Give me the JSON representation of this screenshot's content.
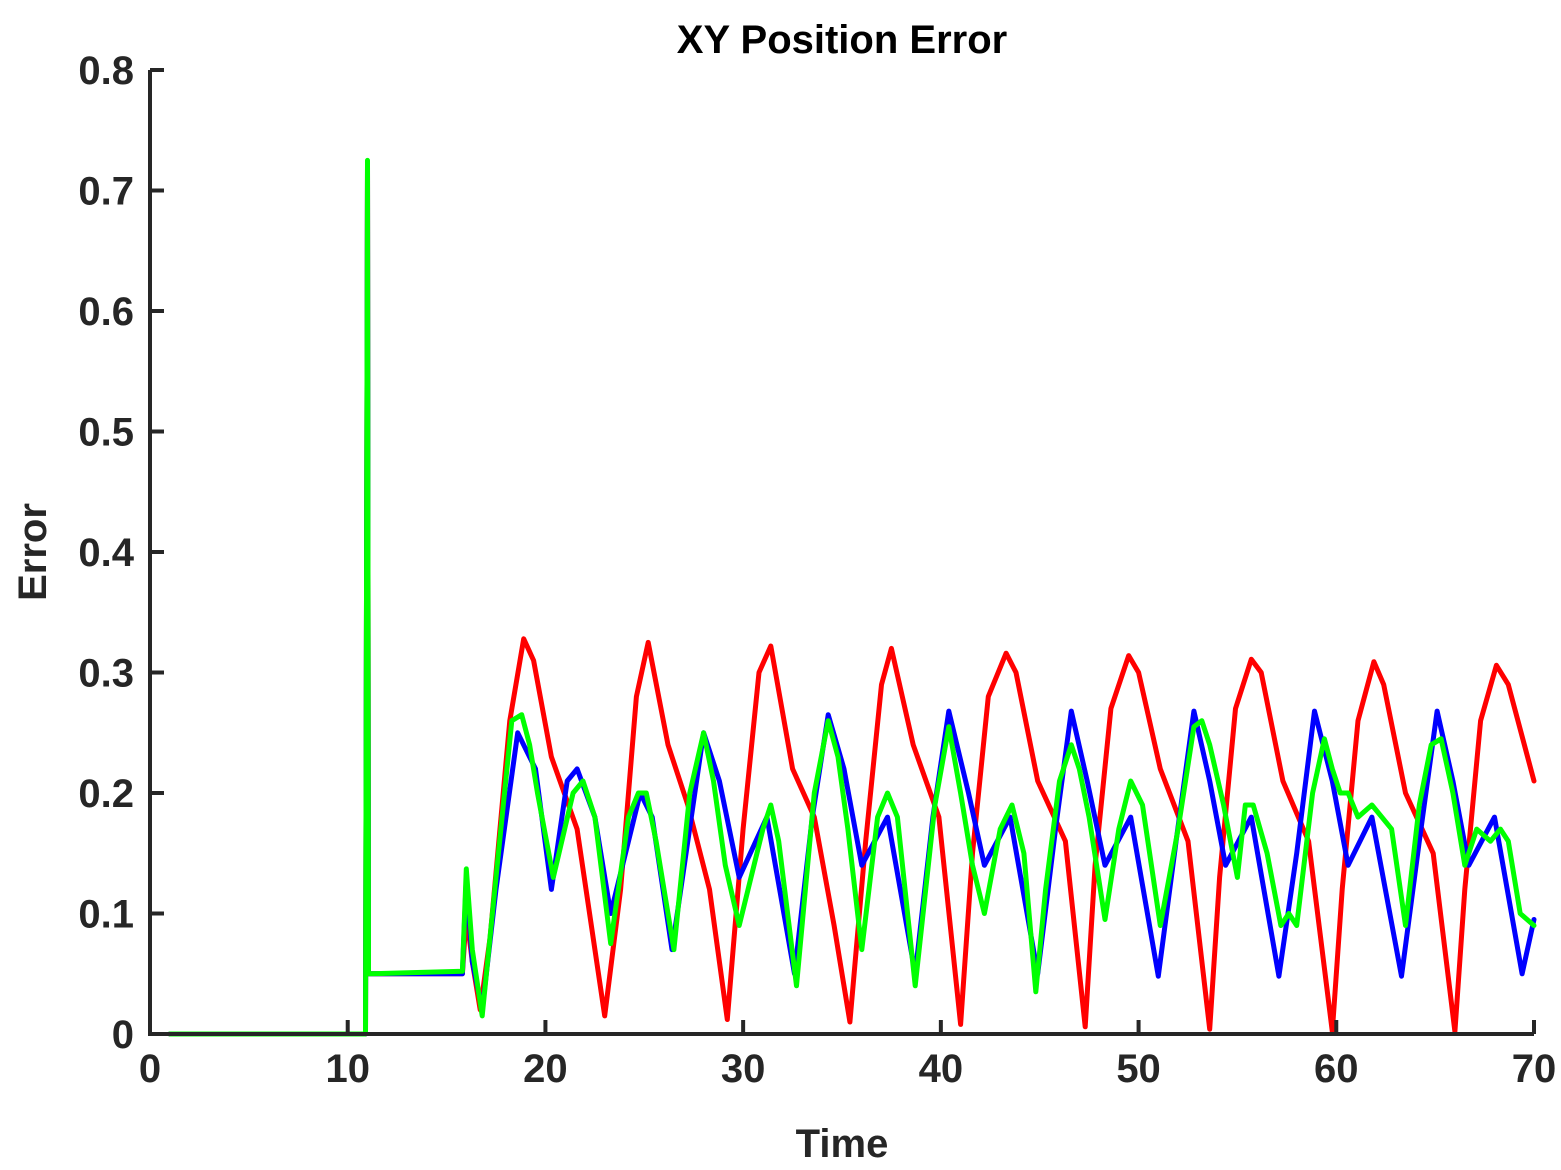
{
  "chart_data": {
    "type": "line",
    "title": "XY Position Error",
    "xlabel": "Time",
    "ylabel": "Error",
    "xlim": [
      0,
      70
    ],
    "ylim": [
      0,
      0.8
    ],
    "xticks": [
      0,
      10,
      20,
      30,
      40,
      50,
      60,
      70
    ],
    "xtick_labels": [
      "0",
      "10",
      "20",
      "30",
      "40",
      "50",
      "60",
      "70"
    ],
    "yticks": [
      0,
      0.1,
      0.2,
      0.3,
      0.4,
      0.5,
      0.6,
      0.7,
      0.8
    ],
    "ytick_labels": [
      "0",
      "0.1",
      "0.2",
      "0.3",
      "0.4",
      "0.5",
      "0.6",
      "0.7",
      "0.8"
    ],
    "grid": false,
    "legend": "none",
    "series": [
      {
        "color": "#ff0000",
        "x": [
          1,
          10.9,
          11,
          11.05,
          11.1,
          15.8,
          16,
          16.3,
          16.7,
          17.2,
          18.2,
          18.9,
          19.4,
          20.3,
          21.6,
          23,
          23.8,
          24.6,
          25.2,
          26.2,
          27.2,
          28.3,
          29.2,
          30,
          30.8,
          31.4,
          32.5,
          33.6,
          34.6,
          35.4,
          36.2,
          37,
          37.5,
          38.6,
          39.9,
          41,
          41.6,
          42.4,
          43.3,
          43.8,
          44.9,
          46.3,
          47.3,
          47.8,
          48.6,
          49.5,
          50,
          51.1,
          52.5,
          53.6,
          54.1,
          54.9,
          55.7,
          56.2,
          57.3,
          58.6,
          59.8,
          60.3,
          61.1,
          61.9,
          62.4,
          63.5,
          64.9,
          66,
          66.5,
          67.3,
          68.1,
          68.7,
          70
        ],
        "values": [
          0,
          0,
          0.72,
          0.05,
          0.05,
          0.05,
          0.1,
          0.06,
          0.02,
          0.08,
          0.26,
          0.328,
          0.31,
          0.23,
          0.17,
          0.015,
          0.12,
          0.28,
          0.325,
          0.24,
          0.19,
          0.12,
          0.012,
          0.17,
          0.3,
          0.322,
          0.22,
          0.18,
          0.09,
          0.01,
          0.16,
          0.29,
          0.32,
          0.24,
          0.18,
          0.008,
          0.15,
          0.28,
          0.316,
          0.3,
          0.21,
          0.16,
          0.006,
          0.14,
          0.27,
          0.314,
          0.3,
          0.22,
          0.16,
          0.004,
          0.13,
          0.27,
          0.311,
          0.3,
          0.21,
          0.16,
          0.002,
          0.12,
          0.26,
          0.309,
          0.29,
          0.2,
          0.15,
          0.002,
          0.12,
          0.26,
          0.306,
          0.29,
          0.21
        ]
      },
      {
        "color": "#0000ff",
        "x": [
          1,
          10.9,
          11,
          11.05,
          11.1,
          15.8,
          16,
          16.3,
          16.8,
          17.5,
          18.6,
          19.5,
          20.3,
          21.1,
          21.6,
          22.5,
          23.3,
          24.8,
          25.4,
          26.4,
          28,
          28.8,
          29.8,
          31.2,
          32.6,
          33.5,
          34.3,
          35.1,
          36,
          37.3,
          38.7,
          39.6,
          40.4,
          41.4,
          42.2,
          43.5,
          44.9,
          45.8,
          46.6,
          47.4,
          48.3,
          49.6,
          51,
          51.9,
          52.8,
          53.6,
          54.4,
          55.7,
          57.1,
          58,
          58.9,
          59.8,
          60.6,
          61.8,
          63.3,
          64.2,
          65.1,
          65.9,
          66.7,
          68,
          69.4,
          70
        ],
        "values": [
          0,
          0,
          0.72,
          0.05,
          0.05,
          0.05,
          0.13,
          0.06,
          0.02,
          0.12,
          0.25,
          0.22,
          0.12,
          0.21,
          0.22,
          0.18,
          0.1,
          0.2,
          0.18,
          0.07,
          0.25,
          0.21,
          0.13,
          0.18,
          0.05,
          0.18,
          0.265,
          0.22,
          0.14,
          0.18,
          0.05,
          0.18,
          0.268,
          0.2,
          0.14,
          0.18,
          0.05,
          0.17,
          0.268,
          0.21,
          0.14,
          0.18,
          0.048,
          0.16,
          0.268,
          0.21,
          0.14,
          0.18,
          0.048,
          0.15,
          0.268,
          0.21,
          0.14,
          0.18,
          0.048,
          0.16,
          0.268,
          0.21,
          0.14,
          0.18,
          0.05,
          0.095
        ]
      },
      {
        "color": "#00ff00",
        "x": [
          1,
          10.9,
          11,
          11.05,
          11.1,
          15.8,
          16,
          16.3,
          16.8,
          17.5,
          18.3,
          18.8,
          19.2,
          19.6,
          20.4,
          21.4,
          21.9,
          22.5,
          23.3,
          24.2,
          24.7,
          25.1,
          25.6,
          26.5,
          27.3,
          28,
          28.5,
          29.1,
          29.8,
          31,
          31.4,
          31.8,
          32.7,
          33.6,
          34.3,
          34.8,
          35.3,
          36,
          36.8,
          37.3,
          37.8,
          38.7,
          39.7,
          40.4,
          41,
          41.6,
          42.2,
          43,
          43.6,
          44.2,
          44.8,
          45.3,
          46,
          46.6,
          47,
          47.5,
          48.3,
          49,
          49.6,
          50.2,
          51.1,
          52,
          52.8,
          53.2,
          53.6,
          54.3,
          55,
          55.4,
          55.8,
          56.5,
          57.2,
          57.6,
          58,
          58.8,
          59.4,
          59.8,
          60.2,
          60.6,
          61.1,
          61.8,
          62.3,
          62.8,
          63.5,
          64.2,
          64.8,
          65.3,
          65.9,
          66.5,
          67.1,
          67.8,
          68.3,
          68.7,
          69.3,
          70
        ],
        "values": [
          0,
          0,
          0.725,
          0.05,
          0.05,
          0.052,
          0.137,
          0.07,
          0.015,
          0.13,
          0.26,
          0.265,
          0.24,
          0.2,
          0.13,
          0.2,
          0.21,
          0.18,
          0.075,
          0.18,
          0.2,
          0.2,
          0.16,
          0.07,
          0.2,
          0.25,
          0.21,
          0.14,
          0.09,
          0.17,
          0.19,
          0.16,
          0.04,
          0.2,
          0.26,
          0.23,
          0.17,
          0.07,
          0.18,
          0.2,
          0.18,
          0.04,
          0.19,
          0.255,
          0.2,
          0.14,
          0.1,
          0.17,
          0.19,
          0.15,
          0.035,
          0.12,
          0.21,
          0.24,
          0.22,
          0.18,
          0.095,
          0.17,
          0.21,
          0.19,
          0.09,
          0.17,
          0.255,
          0.26,
          0.24,
          0.19,
          0.13,
          0.19,
          0.19,
          0.15,
          0.09,
          0.1,
          0.09,
          0.2,
          0.245,
          0.22,
          0.2,
          0.2,
          0.18,
          0.19,
          0.18,
          0.17,
          0.09,
          0.19,
          0.24,
          0.245,
          0.2,
          0.14,
          0.17,
          0.16,
          0.17,
          0.16,
          0.1,
          0.09
        ]
      }
    ]
  }
}
